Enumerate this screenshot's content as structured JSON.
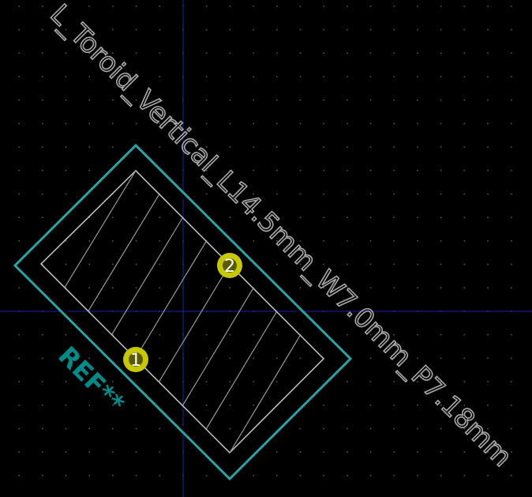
{
  "footprint": {
    "name": "L_Toroid_Vertical_L14.5mm_W7.0mm_P7.18mm",
    "reference": "REF**"
  },
  "pads": [
    {
      "number": "1"
    },
    {
      "number": "2"
    }
  ],
  "colors": {
    "background": "#000000",
    "grid_dots": "#555555",
    "axis_lines": "#1a1a8a",
    "courtyard": "#26a6a6",
    "fab_outline": "#c8c8c8",
    "silkscreen_text": "#a9a9a9",
    "reference_text": "#008b8b",
    "pad_fill": "#c8c800"
  }
}
